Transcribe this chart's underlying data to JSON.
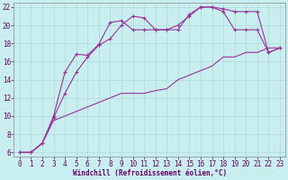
{
  "xlabel": "Windchill (Refroidissement éolien,°C)",
  "bg_color": "#c8eef0",
  "grid_color": "#b0d8da",
  "line_color": "#993399",
  "axis_color": "#660066",
  "xlim": [
    -0.5,
    23.5
  ],
  "ylim": [
    5.5,
    22.5
  ],
  "yticks": [
    6,
    8,
    10,
    12,
    14,
    16,
    18,
    20,
    22
  ],
  "xticks": [
    0,
    1,
    2,
    3,
    4,
    5,
    6,
    7,
    8,
    9,
    10,
    11,
    12,
    13,
    14,
    15,
    16,
    17,
    18,
    19,
    20,
    21,
    22,
    23
  ],
  "curve1_x": [
    0,
    1,
    2,
    3,
    4,
    5,
    6,
    7,
    8,
    9,
    10,
    11,
    12,
    13,
    14,
    15,
    16,
    17,
    18,
    19,
    20,
    21,
    22,
    23
  ],
  "curve1_y": [
    6.0,
    6.0,
    7.0,
    9.8,
    12.5,
    14.8,
    16.5,
    17.8,
    18.5,
    20.0,
    21.0,
    20.8,
    19.5,
    19.5,
    19.5,
    21.2,
    22.0,
    22.0,
    21.8,
    21.5,
    21.5,
    21.5,
    17.0,
    17.5
  ],
  "curve2_x": [
    0,
    1,
    2,
    3,
    4,
    5,
    6,
    7,
    8,
    9,
    10,
    11,
    12,
    13,
    14,
    15,
    16,
    17,
    18,
    19,
    20,
    21,
    22,
    23
  ],
  "curve2_y": [
    6.0,
    6.0,
    7.0,
    10.0,
    14.8,
    16.8,
    16.7,
    17.9,
    20.3,
    20.5,
    19.5,
    19.5,
    19.5,
    19.5,
    20.0,
    21.0,
    22.0,
    22.0,
    21.5,
    19.5,
    19.5,
    19.5,
    17.0,
    17.5
  ],
  "curve3_x": [
    0,
    1,
    2,
    3,
    4,
    5,
    6,
    7,
    8,
    9,
    10,
    11,
    12,
    13,
    14,
    15,
    16,
    17,
    18,
    19,
    20,
    21,
    22,
    23
  ],
  "curve3_y": [
    6.0,
    6.0,
    7.0,
    9.5,
    10.0,
    10.5,
    11.0,
    11.5,
    12.0,
    12.5,
    12.5,
    12.5,
    12.8,
    13.0,
    14.0,
    14.5,
    15.0,
    15.5,
    16.5,
    16.5,
    17.0,
    17.0,
    17.5,
    17.5
  ],
  "tick_fontsize": 5.5,
  "xlabel_fontsize": 5.5
}
